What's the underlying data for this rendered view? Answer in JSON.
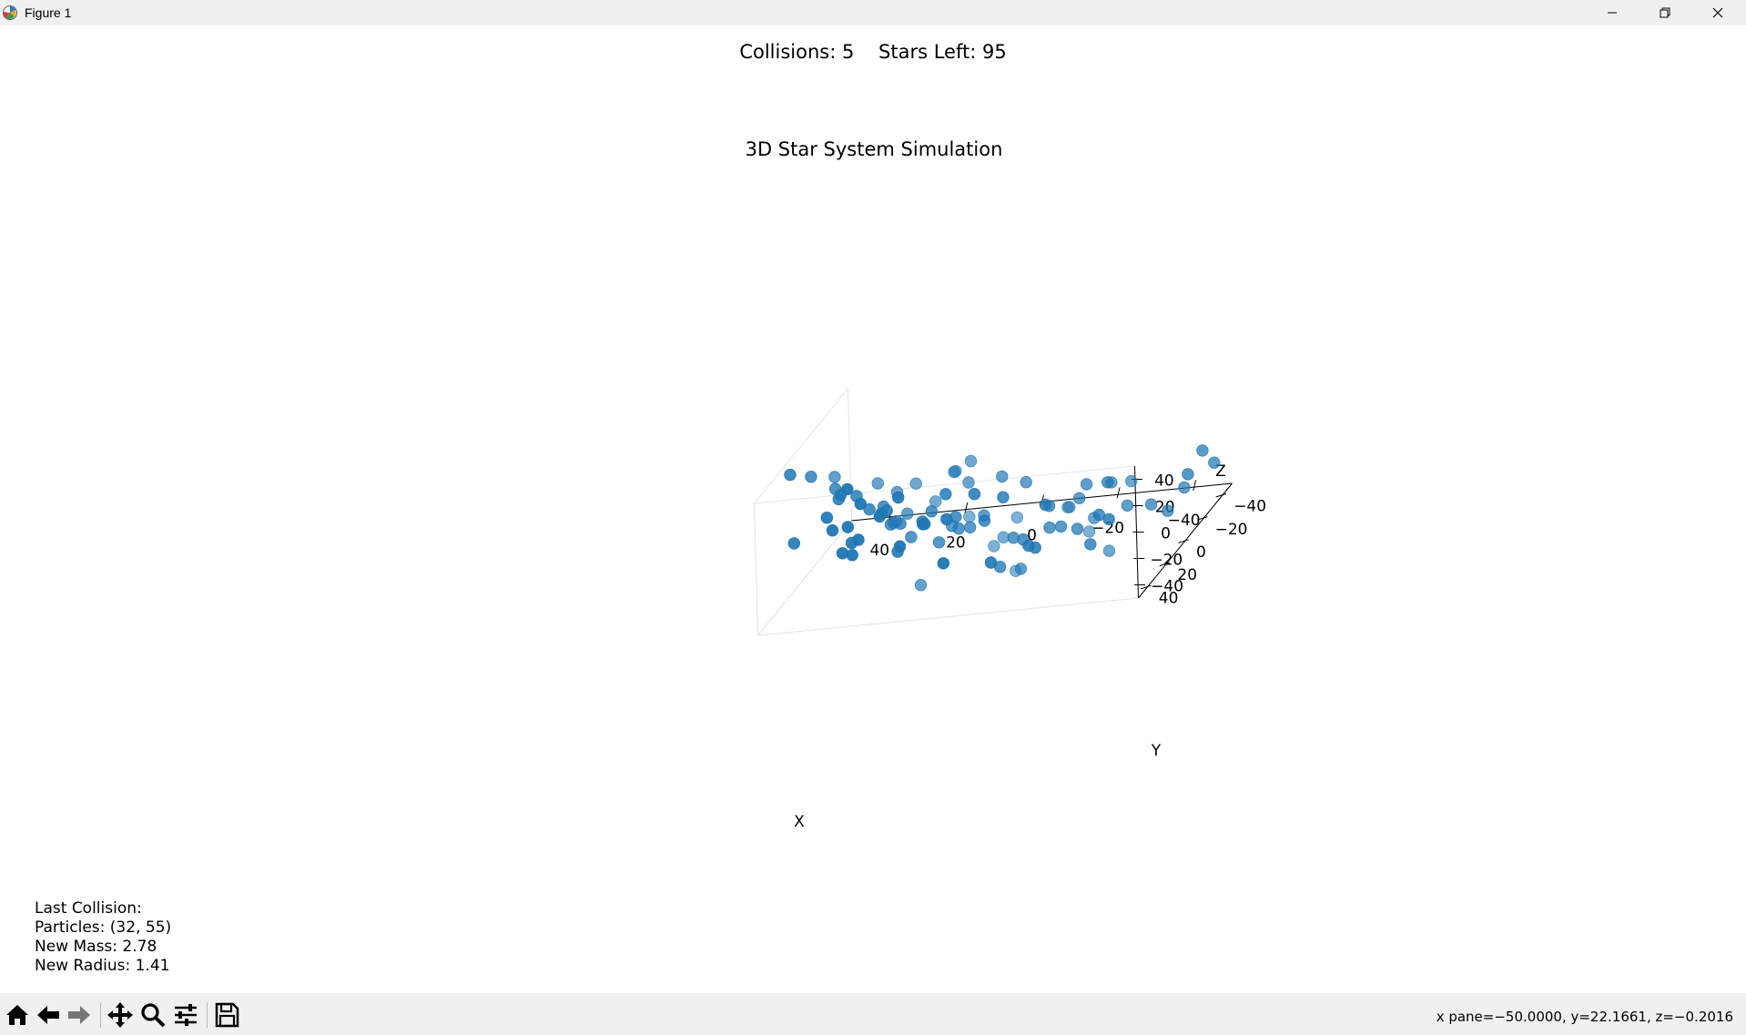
{
  "window": {
    "title": "Figure 1"
  },
  "header": {
    "collisions_text": "Collisions: 5",
    "stars_text": "Stars Left: 95"
  },
  "info": {
    "heading": "Last Collision:",
    "particles": "Particles: (32, 55)",
    "new_mass": "New Mass: 2.78",
    "new_radius": "New Radius: 1.41"
  },
  "status": {
    "coords": "x pane=−50.0000, y=22.1661, z=−0.2016"
  },
  "toolbar": {
    "icons": [
      "home-icon",
      "back-arrow-icon",
      "forward-arrow-icon",
      "pan-move-icon",
      "zoom-magnifier-icon",
      "configure-subplots-icon",
      "save-disk-icon"
    ]
  },
  "chart_data": {
    "type": "scatter3d",
    "title": "3D Star System Simulation",
    "xlabel": "X",
    "ylabel": "Y",
    "zlabel": "Z",
    "xlim": [
      -50,
      50
    ],
    "ylim": [
      -50,
      50
    ],
    "zlim": [
      -50,
      50
    ],
    "x_ticks": [
      "−40",
      "−20",
      "0",
      "20",
      "40"
    ],
    "y_ticks": [
      "−40",
      "−20",
      "0",
      "20",
      "40"
    ],
    "z_ticks": [
      "−40",
      "−20",
      "0",
      "20",
      "40"
    ],
    "grid": false,
    "color": "#1f77b4",
    "points": [
      [
        -48,
        -40,
        -25
      ],
      [
        -45,
        -40,
        -15
      ],
      [
        -43,
        -28,
        -32
      ],
      [
        -40,
        -44,
        -35
      ],
      [
        -38,
        -30,
        -50
      ],
      [
        -35,
        -25,
        -40
      ],
      [
        -30,
        0,
        -52
      ],
      [
        -25,
        -20,
        -16
      ],
      [
        -15,
        38,
        -30
      ],
      [
        -18,
        -28,
        -68
      ],
      [
        -20,
        -30,
        -48
      ],
      [
        -15,
        -10,
        -38
      ],
      [
        -12,
        -10,
        -38
      ],
      [
        -10,
        -18,
        -28
      ],
      [
        -8,
        -22,
        -30
      ],
      [
        -5,
        0,
        -35
      ],
      [
        -5,
        -10,
        -45
      ],
      [
        -3,
        -30,
        -68
      ],
      [
        0,
        -35,
        -70
      ],
      [
        2,
        -18,
        -18
      ],
      [
        5,
        -10,
        -28
      ],
      [
        8,
        5,
        -20
      ],
      [
        10,
        -20,
        -15
      ],
      [
        12,
        10,
        -25
      ],
      [
        -10,
        30,
        -10
      ],
      [
        -28,
        -12,
        -10
      ],
      [
        -25,
        20,
        0
      ],
      [
        -22,
        10,
        -8
      ],
      [
        -20,
        -10,
        -18
      ],
      [
        -15,
        35,
        8
      ],
      [
        -10,
        40,
        -8
      ],
      [
        -5,
        45,
        20
      ],
      [
        -2,
        30,
        50
      ],
      [
        0,
        38,
        50
      ],
      [
        5,
        40,
        30
      ],
      [
        10,
        40,
        45
      ],
      [
        12,
        30,
        -40
      ],
      [
        15,
        30,
        15
      ],
      [
        18,
        30,
        10
      ],
      [
        20,
        25,
        5
      ],
      [
        22,
        20,
        0
      ],
      [
        22,
        10,
        -8
      ],
      [
        25,
        15,
        10
      ],
      [
        28,
        0,
        -5
      ],
      [
        30,
        10,
        5
      ],
      [
        32,
        -10,
        -15
      ],
      [
        35,
        -20,
        -25
      ],
      [
        40,
        -10,
        -35
      ],
      [
        42,
        -25,
        -45
      ],
      [
        45,
        -30,
        -60
      ],
      [
        45,
        -40,
        -30
      ],
      [
        48,
        -38,
        -45
      ],
      [
        50,
        -30,
        -40
      ],
      [
        45,
        -20,
        -50
      ],
      [
        -30,
        20,
        -20
      ],
      [
        -22,
        -10,
        -8
      ],
      [
        -18,
        -15,
        -45
      ],
      [
        0,
        10,
        -8
      ],
      [
        5,
        5,
        -20
      ],
      [
        8,
        12,
        -12
      ],
      [
        10,
        0,
        -15
      ],
      [
        15,
        -10,
        -5
      ],
      [
        18,
        15,
        -15
      ],
      [
        20,
        -5,
        -20
      ],
      [
        22,
        -15,
        -30
      ],
      [
        25,
        -25,
        -38
      ],
      [
        28,
        -10,
        -45
      ],
      [
        30,
        -20,
        -12
      ],
      [
        32,
        15,
        20
      ],
      [
        35,
        25,
        35
      ],
      [
        38,
        10,
        15
      ],
      [
        40,
        0,
        10
      ],
      [
        42,
        -15,
        2
      ],
      [
        45,
        -5,
        -10
      ],
      [
        48,
        20,
        45
      ],
      [
        50,
        10,
        -15
      ],
      [
        40,
        30,
        50
      ],
      [
        30,
        45,
        60
      ],
      [
        20,
        40,
        48
      ],
      [
        15,
        40,
        40
      ],
      [
        5,
        20,
        35
      ],
      [
        0,
        25,
        30
      ],
      [
        -5,
        10,
        20
      ],
      [
        -10,
        5,
        10
      ],
      [
        -35,
        -5,
        -5
      ],
      [
        -30,
        -20,
        -35
      ],
      [
        -25,
        -5,
        -30
      ],
      [
        -20,
        -40,
        -60
      ],
      [
        10,
        -35,
        -80
      ],
      [
        25,
        -45,
        -85
      ],
      [
        35,
        -40,
        -65
      ],
      [
        20,
        -30,
        -40
      ],
      [
        0,
        -5,
        -60
      ],
      [
        -8,
        5,
        -55
      ],
      [
        15,
        5,
        -5
      ]
    ]
  }
}
